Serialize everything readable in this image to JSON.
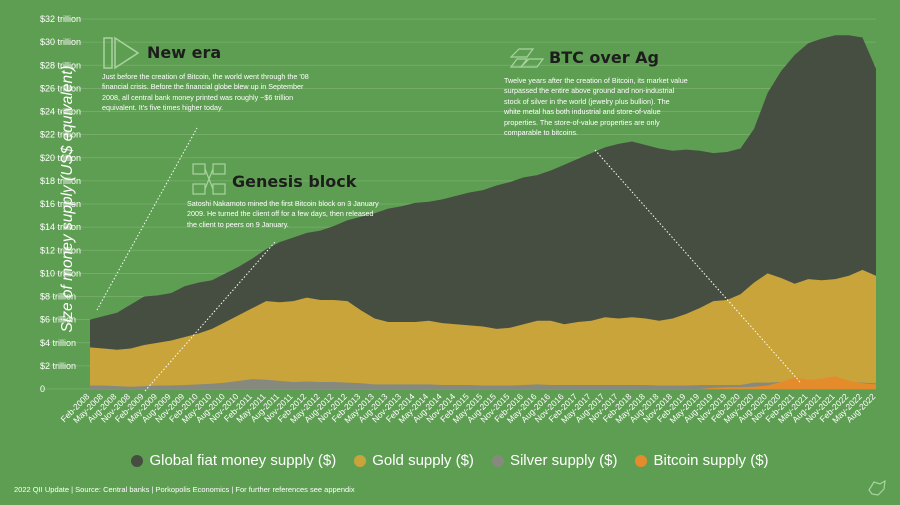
{
  "chart_data": {
    "type": "area",
    "ylabel": "Size of money supply (US$ equivalent)",
    "y_ticks": [
      "0",
      "$2 trillion",
      "$4 trillion",
      "$6 trillion",
      "$8 trillion",
      "$10 trillion",
      "$12 trillion",
      "$14 trillion",
      "$16 trillion",
      "$18 trillion",
      "$20 trillion",
      "$22 trillion",
      "$24 trillion",
      "$26 trillion",
      "$28 trillion",
      "$30 trillion",
      "$32 trillion"
    ],
    "ylim": [
      0,
      32
    ],
    "x_ticks": [
      "Feb-2008",
      "May-2008",
      "Aug-2008",
      "Nov-2008",
      "Feb-2009",
      "May-2009",
      "Aug-2009",
      "Nov-2009",
      "Feb-2010",
      "May-2010",
      "Aug-2010",
      "Nov-2010",
      "Feb-2011",
      "May-2011",
      "Aug-2011",
      "Nov-2011",
      "Feb-2012",
      "May-2012",
      "Aug-2012",
      "Nov-2012",
      "Feb-2013",
      "May-2013",
      "Aug-2013",
      "Nov-2013",
      "Feb-2014",
      "May-2014",
      "Aug-2014",
      "Nov-2014",
      "Feb-2015",
      "May-2015",
      "Aug-2015",
      "Nov-2015",
      "Feb-2016",
      "May-2016",
      "Aug-2016",
      "Nov-2016",
      "Feb-2017",
      "May-2017",
      "Aug-2017",
      "Nov-2017",
      "Feb-2018",
      "May-2018",
      "Aug-2018",
      "Nov-2018",
      "Feb-2019",
      "May-2019",
      "Aug-2019",
      "Nov-2019",
      "Feb-2020",
      "May-2020",
      "Aug-2020",
      "Nov-2020",
      "Feb-2021",
      "May-2021",
      "Aug-2021",
      "Nov-2021",
      "Feb-2022",
      "May-2022",
      "Aug-2022"
    ],
    "series": [
      {
        "name": "Global fiat money supply ($)",
        "color": "#464e42",
        "values": [
          6.0,
          6.3,
          6.6,
          7.3,
          8.0,
          8.1,
          8.3,
          8.9,
          9.2,
          9.4,
          10.0,
          10.6,
          11.3,
          12.1,
          12.7,
          13.1,
          13.5,
          13.7,
          14.1,
          14.6,
          14.9,
          15.2,
          15.6,
          15.8,
          16.1,
          16.2,
          16.4,
          16.7,
          17.0,
          17.2,
          17.6,
          17.9,
          18.3,
          18.5,
          18.9,
          19.4,
          19.9,
          20.4,
          20.9,
          21.2,
          21.4,
          21.1,
          20.8,
          20.6,
          20.7,
          20.6,
          20.4,
          20.5,
          20.8,
          22.5,
          25.6,
          27.5,
          28.9,
          29.9,
          30.3,
          30.6,
          30.6,
          30.4,
          27.7
        ]
      },
      {
        "name": "Gold supply ($)",
        "color": "#c9a43a",
        "values": [
          3.6,
          3.5,
          3.4,
          3.5,
          3.8,
          4.0,
          4.2,
          4.5,
          4.8,
          5.2,
          5.8,
          6.4,
          7.0,
          7.6,
          7.5,
          7.6,
          7.9,
          7.7,
          7.7,
          7.6,
          6.8,
          6.1,
          5.8,
          5.8,
          5.8,
          5.9,
          5.7,
          5.6,
          5.5,
          5.4,
          5.2,
          5.3,
          5.6,
          5.9,
          5.9,
          5.6,
          5.8,
          5.9,
          6.2,
          6.1,
          6.2,
          6.1,
          5.9,
          6.1,
          6.5,
          7.0,
          7.6,
          7.7,
          8.2,
          9.2,
          10.0,
          9.6,
          9.1,
          9.5,
          9.4,
          9.5,
          9.8,
          10.3,
          9.8
        ]
      },
      {
        "name": "Silver supply ($)",
        "color": "#868a7e",
        "values": [
          0.3,
          0.3,
          0.25,
          0.2,
          0.25,
          0.3,
          0.3,
          0.35,
          0.4,
          0.45,
          0.55,
          0.7,
          0.85,
          0.8,
          0.7,
          0.6,
          0.65,
          0.6,
          0.6,
          0.55,
          0.5,
          0.4,
          0.4,
          0.4,
          0.4,
          0.4,
          0.35,
          0.35,
          0.35,
          0.3,
          0.3,
          0.3,
          0.35,
          0.4,
          0.35,
          0.35,
          0.35,
          0.35,
          0.35,
          0.35,
          0.35,
          0.35,
          0.3,
          0.3,
          0.3,
          0.35,
          0.35,
          0.35,
          0.35,
          0.55,
          0.55,
          0.6,
          0.65,
          0.65,
          0.6,
          0.6,
          0.6,
          0.55,
          0.5
        ]
      },
      {
        "name": "Bitcoin supply ($)",
        "color": "#e48c2c",
        "values": [
          0,
          0,
          0,
          0,
          0,
          0,
          0,
          0,
          0,
          0,
          0,
          0,
          0,
          0,
          0,
          0,
          0,
          0,
          0,
          0,
          0,
          0,
          0,
          0,
          0,
          0,
          0,
          0,
          0,
          0,
          0,
          0,
          0,
          0,
          0,
          0,
          0,
          0,
          0,
          0,
          0,
          0,
          0,
          0,
          0,
          0,
          0.1,
          0.15,
          0.15,
          0.2,
          0.3,
          0.6,
          1.0,
          0.8,
          0.9,
          1.1,
          0.7,
          0.5,
          0.4
        ]
      }
    ]
  },
  "annotations": {
    "new_era": {
      "title": "New era",
      "body": "Just before the creation of Bitcoin, the world went through the '08 financial crisis. Before the financial globe blew up in September 2008, all central bank money printed was roughly ~$6 trillion equivalent. It's five times higher today."
    },
    "genesis": {
      "title": "Genesis block",
      "body": "Satoshi Nakamoto mined the first Bitcoin block on 3 January 2009. He turned the client off for a few days, then released the client to peers on 9 January."
    },
    "btc_ag": {
      "title": "BTC over Ag",
      "body": "Twelve years after the creation of Bitcoin, its market value surpassed the entire above ground and non-industrial stock of silver in the world (jewelry plus bullion). The white metal has both industrial and store-of-value properties. The store-of-value properties are only comparable to bitcoins."
    }
  },
  "legend": [
    {
      "label": "Global fiat money supply ($)",
      "color": "#464e42"
    },
    {
      "label": "Gold supply ($)",
      "color": "#c9a43a"
    },
    {
      "label": "Silver supply ($)",
      "color": "#868a7e"
    },
    {
      "label": "Bitcoin supply ($)",
      "color": "#e48c2c"
    }
  ],
  "footer": "2022 QII Update | Source: Central banks | Porkopolis Economics | For further references see appendix",
  "colors": {
    "background": "#5e9e52",
    "grid": "#7bb06f"
  },
  "icons": [
    "play-arrows-icon",
    "blocks-network-icon",
    "bullion-bars-icon",
    "logo-icon"
  ]
}
